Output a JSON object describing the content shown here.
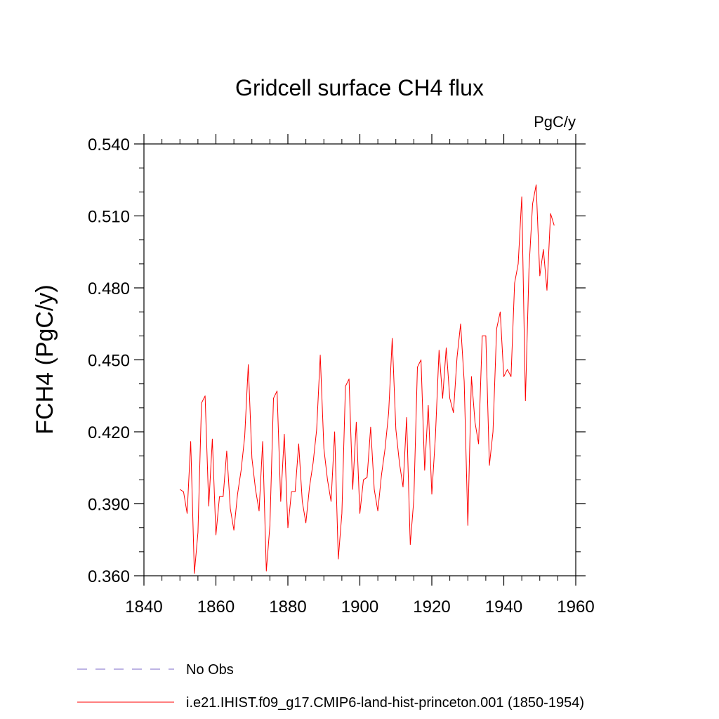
{
  "chart_data": {
    "type": "line",
    "title": "Gridcell surface CH4 flux",
    "units": "PgC/y",
    "xlabel": "",
    "ylabel": "FCH4  (PgC/y)",
    "xlim": [
      1840,
      1960
    ],
    "ylim": [
      0.36,
      0.54
    ],
    "xticks": [
      1840,
      1860,
      1880,
      1900,
      1920,
      1940,
      1960
    ],
    "yticks": [
      0.36,
      0.39,
      0.42,
      0.45,
      0.48,
      0.51,
      0.54
    ],
    "xtick_labels": [
      "1840",
      "1860",
      "1880",
      "1900",
      "1920",
      "1940",
      "1960"
    ],
    "ytick_labels": [
      "0.360",
      "0.390",
      "0.420",
      "0.450",
      "0.480",
      "0.510",
      "0.540"
    ],
    "grid": false,
    "legend_position": "bottom",
    "series": [
      {
        "name": "No Obs",
        "color": "#7b68c8",
        "style": "dashed",
        "x": [],
        "y": []
      },
      {
        "name": "i.e21.IHIST.f09_g17.CMIP6-land-hist-princeton.001 (1850-1954)",
        "color": "#ff0000",
        "style": "solid",
        "x": [
          1850,
          1851,
          1852,
          1853,
          1854,
          1855,
          1856,
          1857,
          1858,
          1859,
          1860,
          1861,
          1862,
          1863,
          1864,
          1865,
          1866,
          1867,
          1868,
          1869,
          1870,
          1871,
          1872,
          1873,
          1874,
          1875,
          1876,
          1877,
          1878,
          1879,
          1880,
          1881,
          1882,
          1883,
          1884,
          1885,
          1886,
          1887,
          1888,
          1889,
          1890,
          1891,
          1892,
          1893,
          1894,
          1895,
          1896,
          1897,
          1898,
          1899,
          1900,
          1901,
          1902,
          1903,
          1904,
          1905,
          1906,
          1907,
          1908,
          1909,
          1910,
          1911,
          1912,
          1913,
          1914,
          1915,
          1916,
          1917,
          1918,
          1919,
          1920,
          1921,
          1922,
          1923,
          1924,
          1925,
          1926,
          1927,
          1928,
          1929,
          1930,
          1931,
          1932,
          1933,
          1934,
          1935,
          1936,
          1937,
          1938,
          1939,
          1940,
          1941,
          1942,
          1943,
          1944,
          1945,
          1946,
          1947,
          1948,
          1949,
          1950,
          1951,
          1952,
          1953,
          1954
        ],
        "y": [
          0.396,
          0.395,
          0.386,
          0.416,
          0.361,
          0.378,
          0.432,
          0.435,
          0.389,
          0.417,
          0.377,
          0.393,
          0.393,
          0.412,
          0.388,
          0.379,
          0.394,
          0.404,
          0.418,
          0.448,
          0.409,
          0.396,
          0.387,
          0.416,
          0.362,
          0.381,
          0.434,
          0.437,
          0.391,
          0.419,
          0.38,
          0.395,
          0.395,
          0.415,
          0.391,
          0.382,
          0.397,
          0.407,
          0.421,
          0.452,
          0.413,
          0.4,
          0.391,
          0.42,
          0.367,
          0.386,
          0.439,
          0.442,
          0.396,
          0.424,
          0.386,
          0.4,
          0.401,
          0.422,
          0.396,
          0.387,
          0.402,
          0.413,
          0.428,
          0.459,
          0.421,
          0.407,
          0.397,
          0.426,
          0.373,
          0.392,
          0.447,
          0.45,
          0.404,
          0.431,
          0.394,
          0.418,
          0.454,
          0.434,
          0.455,
          0.434,
          0.428,
          0.451,
          0.465,
          0.441,
          0.381,
          0.443,
          0.424,
          0.415,
          0.46,
          0.46,
          0.406,
          0.42,
          0.463,
          0.47,
          0.443,
          0.446,
          0.443,
          0.482,
          0.49,
          0.518,
          0.433,
          0.488,
          0.515,
          0.523,
          0.485,
          0.496,
          0.479,
          0.511,
          0.506
        ]
      }
    ]
  }
}
